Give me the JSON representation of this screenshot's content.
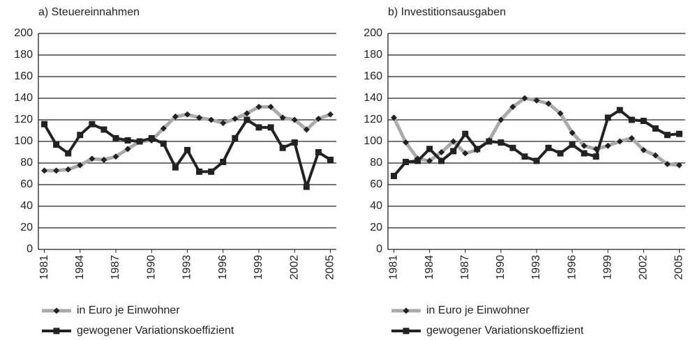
{
  "chart_data": [
    {
      "type": "line",
      "title": "a) Steuereinnahmen",
      "x": [
        1981,
        1982,
        1983,
        1984,
        1985,
        1986,
        1987,
        1988,
        1989,
        1990,
        1991,
        1992,
        1993,
        1994,
        1995,
        1996,
        1997,
        1998,
        1999,
        2000,
        2001,
        2002,
        2003,
        2004,
        2005
      ],
      "series": [
        {
          "name": "in Euro je Einwohner",
          "color": "#aaaaaa",
          "marker": "diamond",
          "values": [
            73,
            73,
            74,
            78,
            84,
            83,
            86,
            93,
            100,
            101,
            112,
            123,
            125,
            122,
            120,
            117,
            121,
            126,
            132,
            132,
            122,
            120,
            111,
            121,
            125
          ]
        },
        {
          "name": "gewogener Variationskoeffizient",
          "color": "#222222",
          "marker": "square",
          "values": [
            116,
            97,
            89,
            106,
            116,
            111,
            103,
            101,
            100,
            103,
            98,
            76,
            92,
            72,
            72,
            81,
            103,
            120,
            113,
            113,
            94,
            99,
            58,
            90,
            83
          ]
        }
      ],
      "xlim": [
        1981,
        2005
      ],
      "xticks": [
        1981,
        1984,
        1987,
        1990,
        1993,
        1996,
        1999,
        2002,
        2005
      ],
      "ylim": [
        0,
        200
      ],
      "yticks": [
        0,
        20,
        40,
        60,
        80,
        100,
        120,
        140,
        160,
        180,
        200
      ],
      "grid": true
    },
    {
      "type": "line",
      "title": "b) Investitionsausgaben",
      "x": [
        1981,
        1982,
        1983,
        1984,
        1985,
        1986,
        1987,
        1988,
        1989,
        1990,
        1991,
        1992,
        1993,
        1994,
        1995,
        1996,
        1997,
        1998,
        1999,
        2000,
        2001,
        2002,
        2003,
        2004,
        2005
      ],
      "series": [
        {
          "name": "in Euro je Einwohner",
          "color": "#aaaaaa",
          "marker": "diamond",
          "values": [
            122,
            99,
            84,
            82,
            90,
            100,
            89,
            92,
            101,
            120,
            132,
            140,
            138,
            135,
            126,
            108,
            96,
            93,
            96,
            100,
            103,
            92,
            87,
            79,
            78
          ]
        },
        {
          "name": "gewogener Variationskoeffizient",
          "color": "#222222",
          "marker": "square",
          "values": [
            68,
            81,
            82,
            93,
            82,
            91,
            107,
            93,
            100,
            99,
            94,
            86,
            82,
            94,
            89,
            97,
            89,
            86,
            122,
            129,
            120,
            119,
            112,
            106,
            107
          ]
        }
      ],
      "xlim": [
        1981,
        2005
      ],
      "xticks": [
        1981,
        1984,
        1987,
        1990,
        1993,
        1996,
        1999,
        2002,
        2005
      ],
      "ylim": [
        0,
        200
      ],
      "yticks": [
        0,
        20,
        40,
        60,
        80,
        100,
        120,
        140,
        160,
        180,
        200
      ],
      "grid": true
    }
  ]
}
